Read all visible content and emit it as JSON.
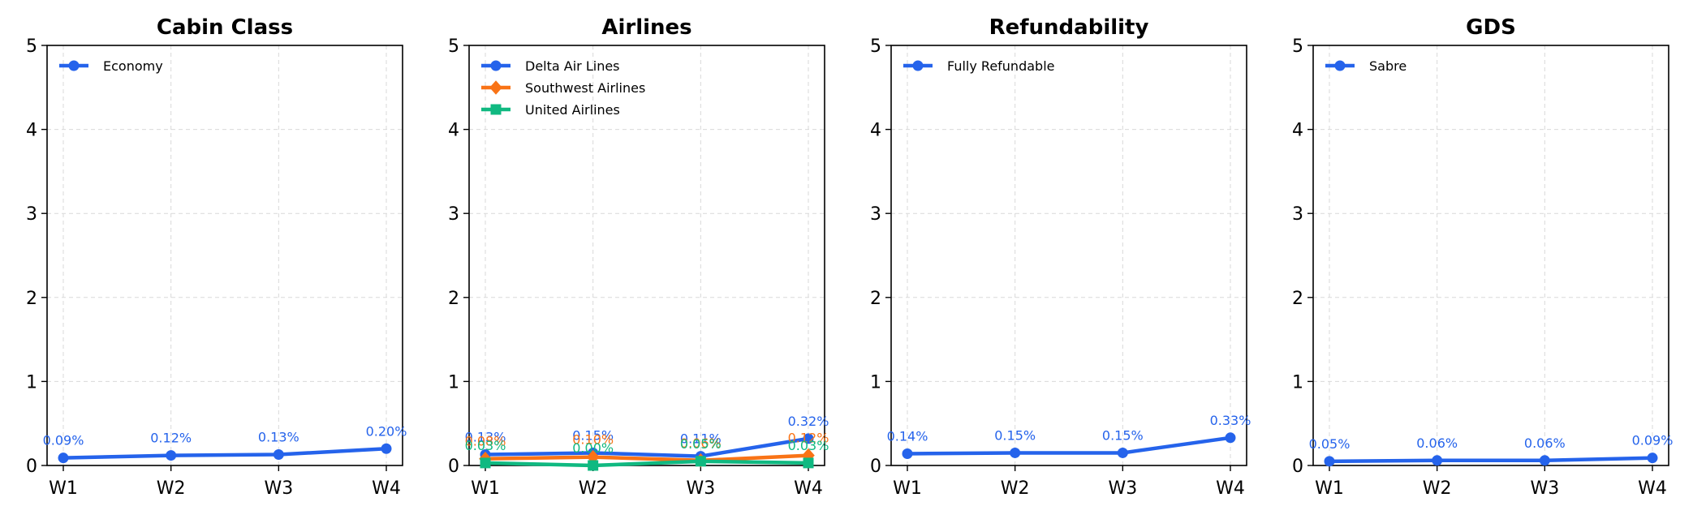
{
  "chart_data": [
    {
      "type": "line",
      "title": "Cabin Class",
      "xlabel": "",
      "ylabel": "",
      "categories": [
        "W1",
        "W2",
        "W3",
        "W4"
      ],
      "ylim": [
        0,
        5
      ],
      "yticks": [
        0,
        1,
        2,
        3,
        4,
        5
      ],
      "grid": true,
      "legend_position": "upper-left",
      "series": [
        {
          "name": "Economy",
          "values": [
            0.09,
            0.12,
            0.13,
            0.2
          ],
          "labels": [
            "0.09%",
            "0.12%",
            "0.13%",
            "0.20%"
          ],
          "color": "#2563eb",
          "marker": "circle"
        }
      ]
    },
    {
      "type": "line",
      "title": "Airlines",
      "xlabel": "",
      "ylabel": "",
      "categories": [
        "W1",
        "W2",
        "W3",
        "W4"
      ],
      "ylim": [
        0,
        5
      ],
      "yticks": [
        0,
        1,
        2,
        3,
        4,
        5
      ],
      "grid": true,
      "legend_position": "upper-left",
      "series": [
        {
          "name": "Delta Air Lines",
          "values": [
            0.13,
            0.15,
            0.11,
            0.32
          ],
          "labels": [
            "0.13%",
            "0.15%",
            "0.11%",
            "0.32%"
          ],
          "color": "#2563eb",
          "marker": "circle"
        },
        {
          "name": "Southwest Airlines",
          "values": [
            0.08,
            0.1,
            0.06,
            0.12
          ],
          "labels": [
            "0.08%",
            "0.10%",
            "0.06%",
            "0.12%"
          ],
          "color": "#f97316",
          "marker": "diamond"
        },
        {
          "name": "United Airlines",
          "values": [
            0.03,
            0.0,
            0.05,
            0.03
          ],
          "labels": [
            "0.03%",
            "0.00%",
            "0.05%",
            "0.03%"
          ],
          "color": "#10b981",
          "marker": "square"
        }
      ]
    },
    {
      "type": "line",
      "title": "Refundability",
      "xlabel": "",
      "ylabel": "",
      "categories": [
        "W1",
        "W2",
        "W3",
        "W4"
      ],
      "ylim": [
        0,
        5
      ],
      "yticks": [
        0,
        1,
        2,
        3,
        4,
        5
      ],
      "grid": true,
      "legend_position": "upper-left",
      "series": [
        {
          "name": "Fully Refundable",
          "values": [
            0.14,
            0.15,
            0.15,
            0.33
          ],
          "labels": [
            "0.14%",
            "0.15%",
            "0.15%",
            "0.33%"
          ],
          "color": "#2563eb",
          "marker": "circle"
        }
      ]
    },
    {
      "type": "line",
      "title": "GDS",
      "xlabel": "",
      "ylabel": "",
      "categories": [
        "W1",
        "W2",
        "W3",
        "W4"
      ],
      "ylim": [
        0,
        5
      ],
      "yticks": [
        0,
        1,
        2,
        3,
        4,
        5
      ],
      "grid": true,
      "legend_position": "upper-left",
      "series": [
        {
          "name": "Sabre",
          "values": [
            0.05,
            0.06,
            0.06,
            0.09
          ],
          "labels": [
            "0.05%",
            "0.06%",
            "0.06%",
            "0.09%"
          ],
          "color": "#2563eb",
          "marker": "circle"
        }
      ]
    }
  ]
}
